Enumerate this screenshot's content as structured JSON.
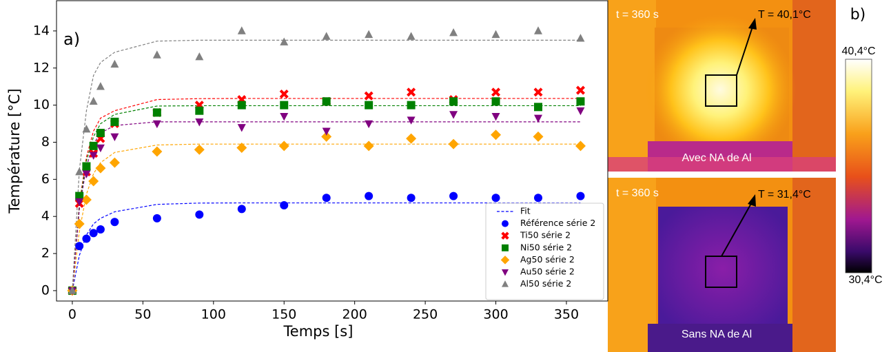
{
  "chart_data": {
    "type": "scatter",
    "panel_label": "a)",
    "xlabel": "Temps [s]",
    "ylabel": "Température [°C]",
    "x": [
      0,
      5,
      10,
      15,
      20,
      30,
      60,
      90,
      120,
      150,
      180,
      210,
      240,
      270,
      300,
      330,
      360
    ],
    "xlim": [
      -11.2,
      379.3
    ],
    "xticks": [
      0,
      50,
      100,
      150,
      200,
      250,
      300,
      350
    ],
    "ylim": [
      -0.56,
      15.63
    ],
    "yticks": [
      0,
      2,
      4,
      6,
      8,
      10,
      12,
      14
    ],
    "legend": "lower right",
    "fit_label": "Fit",
    "series": [
      {
        "name": "Référence série 2",
        "color": "#0000ff",
        "marker": "circle",
        "values": [
          0,
          2.4,
          2.8,
          3.1,
          3.3,
          3.7,
          3.9,
          4.1,
          4.4,
          4.6,
          5.0,
          5.1,
          5.0,
          5.1,
          5.0,
          5.0,
          5.1
        ],
        "fit_values": [
          0,
          1.9,
          3.0,
          3.6,
          3.9,
          4.25,
          4.65,
          4.72,
          4.73,
          4.73,
          4.73,
          4.73,
          4.73,
          4.73,
          4.73,
          4.73,
          4.73
        ]
      },
      {
        "name": "Ti50 série 2",
        "color": "#ff0000",
        "marker": "x",
        "values": [
          0,
          4.7,
          6.4,
          7.4,
          8.2,
          9.0,
          9.6,
          10.0,
          10.3,
          10.6,
          10.2,
          10.5,
          10.7,
          10.3,
          10.7,
          10.7,
          10.8
        ],
        "fit_values": [
          0,
          4.7,
          7.2,
          8.6,
          9.3,
          9.7,
          10.3,
          10.35,
          10.36,
          10.36,
          10.36,
          10.36,
          10.36,
          10.36,
          10.36,
          10.36,
          10.36
        ]
      },
      {
        "name": "Ni50 série 2",
        "color": "#008000",
        "marker": "square",
        "values": [
          0,
          5.1,
          6.7,
          7.8,
          8.5,
          9.1,
          9.6,
          9.7,
          10.0,
          10.0,
          10.2,
          10.0,
          10.0,
          10.2,
          10.2,
          9.9,
          10.2
        ],
        "fit_values": [
          0,
          4.6,
          7.0,
          8.3,
          9.0,
          9.5,
          9.95,
          9.97,
          9.97,
          9.97,
          9.97,
          9.97,
          9.97,
          9.97,
          9.97,
          9.97,
          9.97
        ]
      },
      {
        "name": "Ag50 série 2",
        "color": "#ffa500",
        "marker": "diamond",
        "values": [
          0,
          3.6,
          4.9,
          5.9,
          6.6,
          6.9,
          7.5,
          7.6,
          7.7,
          7.8,
          8.3,
          7.8,
          8.2,
          7.9,
          8.4,
          8.3,
          7.8
        ],
        "fit_values": [
          0,
          3.2,
          5.2,
          6.3,
          6.9,
          7.45,
          7.85,
          7.9,
          7.9,
          7.9,
          7.9,
          7.9,
          7.9,
          7.9,
          7.9,
          7.9,
          7.9
        ]
      },
      {
        "name": "Au50 série 2",
        "color": "#800080",
        "marker": "triangle-down",
        "values": [
          0,
          4.8,
          6.3,
          7.3,
          7.7,
          8.3,
          9.0,
          9.1,
          8.8,
          9.4,
          8.6,
          9.0,
          9.2,
          9.5,
          9.4,
          9.3,
          9.7
        ],
        "fit_values": [
          0,
          4.4,
          6.7,
          7.9,
          8.5,
          8.9,
          9.1,
          9.1,
          9.1,
          9.1,
          9.1,
          9.1,
          9.1,
          9.1,
          9.1,
          9.1,
          9.1
        ]
      },
      {
        "name": "Al50 série 2",
        "color": "#808080",
        "marker": "triangle-up",
        "values": [
          0,
          6.4,
          8.7,
          10.2,
          11.0,
          12.2,
          12.7,
          12.6,
          14.0,
          13.4,
          13.7,
          13.8,
          13.7,
          13.9,
          13.8,
          14.0,
          13.6
        ],
        "fit_values": [
          0,
          6.5,
          9.7,
          11.6,
          12.3,
          12.85,
          13.45,
          13.5,
          13.5,
          13.5,
          13.5,
          13.5,
          13.5,
          13.5,
          13.5,
          13.5,
          13.5
        ]
      }
    ]
  },
  "images": {
    "panel_label": "b)",
    "top": {
      "time": "t = 360 s",
      "temp": "T = 40,1°C",
      "caption": "Avec NA de Al"
    },
    "bottom": {
      "time": "t = 360 s",
      "temp": "T = 31,4°C",
      "caption": "Sans NA de Al"
    },
    "colorbar": {
      "max_label": "40,4°C",
      "min_label": "30,4°C"
    }
  }
}
